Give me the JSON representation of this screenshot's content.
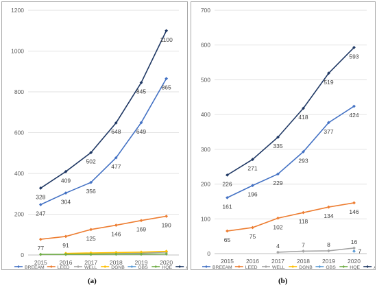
{
  "captions": [
    "(a)",
    "(b)"
  ],
  "series_colors": {
    "BREEAM": "#4472c4",
    "LEED": "#ed7d31",
    "WELL": "#a5a5a5",
    "DGNB": "#ffc000",
    "GBS": "#5b9bd5",
    "HQE": "#70ad47",
    "ALL": "#1f3864"
  },
  "chart_data": [
    {
      "type": "line",
      "title": "",
      "x": [
        "2015",
        "2016",
        "2017",
        "2018",
        "2019",
        "2020"
      ],
      "ylim": [
        0,
        1200
      ],
      "yticks": [
        0,
        200,
        400,
        600,
        800,
        1000,
        1200
      ],
      "grid": true,
      "legend": "bottom",
      "series": [
        {
          "name": "BREEAM",
          "values": [
            247,
            304,
            356,
            477,
            649,
            865
          ],
          "labels": [
            "247",
            "304",
            "356",
            "477",
            "649",
            "865"
          ]
        },
        {
          "name": "LEED",
          "values": [
            77,
            91,
            125,
            146,
            169,
            190
          ],
          "labels": [
            "77",
            "91",
            "125",
            "146",
            "169",
            "190"
          ]
        },
        {
          "name": "WELL",
          "values": [
            null,
            4,
            6,
            7,
            9,
            14
          ],
          "labels": []
        },
        {
          "name": "DGNB",
          "values": [
            null,
            8,
            10,
            12,
            14,
            18
          ],
          "labels": []
        },
        {
          "name": "GBS",
          "values": [
            null,
            null,
            null,
            null,
            null,
            null
          ],
          "labels": []
        },
        {
          "name": "HQE",
          "values": [
            3,
            3,
            3,
            4,
            4,
            5
          ],
          "labels": []
        },
        {
          "name": "ALL",
          "values": [
            328,
            409,
            502,
            648,
            845,
            1100
          ],
          "labels": [
            "328",
            "409",
            "502",
            "648",
            "845",
            "1100"
          ]
        }
      ]
    },
    {
      "type": "line",
      "title": "",
      "x": [
        "2015",
        "2016",
        "2017",
        "2018",
        "2019",
        "2020"
      ],
      "ylim": [
        0,
        700
      ],
      "yticks": [
        0,
        100,
        200,
        300,
        400,
        500,
        600,
        700
      ],
      "grid": true,
      "legend": "bottom",
      "series": [
        {
          "name": "BREEAM",
          "values": [
            161,
            196,
            229,
            293,
            377,
            424
          ],
          "labels": [
            "161",
            "196",
            "229",
            "293",
            "377",
            "424"
          ]
        },
        {
          "name": "LEED",
          "values": [
            65,
            75,
            102,
            118,
            134,
            146
          ],
          "labels": [
            "65",
            "75",
            "102",
            "118",
            "134",
            "146"
          ]
        },
        {
          "name": "WELL",
          "values": [
            null,
            null,
            4,
            7,
            8,
            16
          ],
          "labels": [
            "",
            "",
            "4",
            "7",
            "8",
            "16"
          ]
        },
        {
          "name": "DGNB",
          "values": [
            null,
            null,
            null,
            null,
            null,
            null
          ],
          "labels": []
        },
        {
          "name": "GBS",
          "values": [
            null,
            null,
            null,
            null,
            null,
            7
          ],
          "labels": [
            "",
            "",
            "",
            "",
            "",
            "7"
          ]
        },
        {
          "name": "HQE",
          "values": [
            null,
            null,
            null,
            null,
            null,
            null
          ],
          "labels": []
        },
        {
          "name": "ALL",
          "values": [
            226,
            271,
            335,
            418,
            519,
            593
          ],
          "labels": [
            "226",
            "271",
            "335",
            "418",
            "519",
            "593"
          ]
        }
      ]
    }
  ]
}
